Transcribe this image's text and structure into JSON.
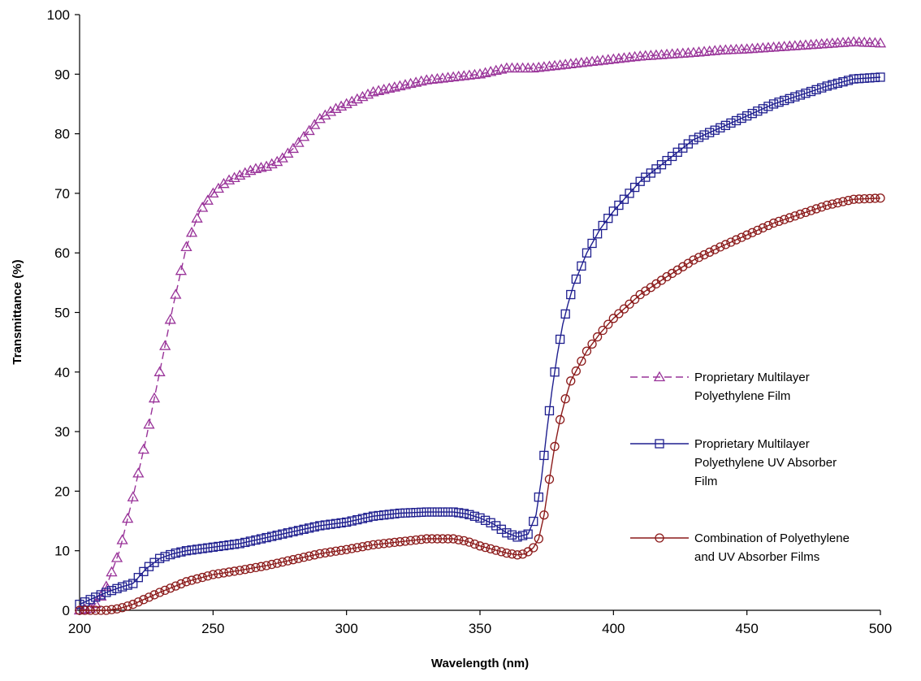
{
  "chart_data": {
    "type": "line",
    "title": "",
    "xlabel": "Wavelength (nm)",
    "ylabel": "Transmittance (%)",
    "xlim": [
      200,
      500
    ],
    "ylim": [
      0,
      100
    ],
    "x_ticks": [
      "200",
      "250",
      "300",
      "350",
      "400",
      "450",
      "500"
    ],
    "y_ticks": [
      "0",
      "10",
      "20",
      "30",
      "40",
      "50",
      "60",
      "70",
      "80",
      "90",
      "100"
    ],
    "grid": false,
    "legend_position": "right",
    "series": [
      {
        "name": "Proprietary Multilayer Polyethylene Film",
        "legend_lines": [
          "Proprietary Multilayer",
          "Polyethylene Film"
        ],
        "color": "#993399",
        "marker": "triangle",
        "line_style": "dashed",
        "points": [
          [
            200,
            0
          ],
          [
            204,
            0.3
          ],
          [
            207,
            1.5
          ],
          [
            210,
            4
          ],
          [
            215,
            10
          ],
          [
            220,
            19
          ],
          [
            225,
            29
          ],
          [
            230,
            40
          ],
          [
            235,
            51
          ],
          [
            240,
            61
          ],
          [
            245,
            67
          ],
          [
            250,
            70
          ],
          [
            255,
            72
          ],
          [
            260,
            73
          ],
          [
            265,
            74
          ],
          [
            270,
            74.5
          ],
          [
            275,
            75.5
          ],
          [
            280,
            77.5
          ],
          [
            285,
            80
          ],
          [
            290,
            82.5
          ],
          [
            295,
            84
          ],
          [
            300,
            85
          ],
          [
            305,
            86
          ],
          [
            310,
            87
          ],
          [
            320,
            88
          ],
          [
            330,
            89
          ],
          [
            340,
            89.5
          ],
          [
            350,
            90
          ],
          [
            360,
            91
          ],
          [
            370,
            91
          ],
          [
            380,
            91.5
          ],
          [
            390,
            92
          ],
          [
            400,
            92.5
          ],
          [
            410,
            93
          ],
          [
            420,
            93.3
          ],
          [
            430,
            93.6
          ],
          [
            440,
            94
          ],
          [
            450,
            94.2
          ],
          [
            460,
            94.5
          ],
          [
            470,
            94.8
          ],
          [
            480,
            95.1
          ],
          [
            490,
            95.4
          ],
          [
            500,
            95.2
          ]
        ]
      },
      {
        "name": "Proprietary Multilayer Polyethylene UV Absorber Film",
        "legend_lines": [
          "Proprietary Multilayer",
          "Polyethylene UV Absorber",
          "Film"
        ],
        "color": "#1f1f8f",
        "marker": "square",
        "line_style": "solid",
        "points": [
          [
            200,
            1
          ],
          [
            205,
            2
          ],
          [
            210,
            3
          ],
          [
            215,
            3.8
          ],
          [
            220,
            4.5
          ],
          [
            225,
            7
          ],
          [
            230,
            8.7
          ],
          [
            235,
            9.5
          ],
          [
            240,
            10
          ],
          [
            250,
            10.6
          ],
          [
            260,
            11.2
          ],
          [
            270,
            12.2
          ],
          [
            280,
            13.2
          ],
          [
            290,
            14.2
          ],
          [
            300,
            14.8
          ],
          [
            310,
            15.8
          ],
          [
            320,
            16.3
          ],
          [
            330,
            16.5
          ],
          [
            340,
            16.5
          ],
          [
            345,
            16.2
          ],
          [
            350,
            15.5
          ],
          [
            355,
            14.5
          ],
          [
            360,
            13
          ],
          [
            364,
            12.3
          ],
          [
            368,
            12.8
          ],
          [
            371,
            16
          ],
          [
            373,
            22
          ],
          [
            375,
            30
          ],
          [
            377,
            37
          ],
          [
            379,
            43
          ],
          [
            381,
            48
          ],
          [
            383,
            51.5
          ],
          [
            385,
            54.5
          ],
          [
            390,
            60
          ],
          [
            395,
            64
          ],
          [
            400,
            67
          ],
          [
            410,
            72
          ],
          [
            420,
            75.5
          ],
          [
            430,
            79
          ],
          [
            440,
            81
          ],
          [
            450,
            83
          ],
          [
            460,
            85
          ],
          [
            470,
            86.5
          ],
          [
            480,
            88
          ],
          [
            490,
            89.2
          ],
          [
            500,
            89.5
          ]
        ]
      },
      {
        "name": "Combination of Polyethylene and UV Absorber Films",
        "legend_lines": [
          "Combination of Polyethylene",
          "and UV Absorber Films"
        ],
        "color": "#8b1a1a",
        "marker": "circle",
        "line_style": "solid",
        "points": [
          [
            200,
            0
          ],
          [
            210,
            0
          ],
          [
            215,
            0.3
          ],
          [
            220,
            1
          ],
          [
            225,
            2
          ],
          [
            230,
            3
          ],
          [
            240,
            4.8
          ],
          [
            250,
            6
          ],
          [
            260,
            6.7
          ],
          [
            270,
            7.5
          ],
          [
            280,
            8.5
          ],
          [
            290,
            9.5
          ],
          [
            300,
            10.2
          ],
          [
            310,
            11
          ],
          [
            320,
            11.5
          ],
          [
            330,
            12
          ],
          [
            340,
            12
          ],
          [
            345,
            11.6
          ],
          [
            350,
            10.8
          ],
          [
            355,
            10.2
          ],
          [
            360,
            9.6
          ],
          [
            364,
            9.3
          ],
          [
            367,
            9.5
          ],
          [
            370,
            10.5
          ],
          [
            372,
            12
          ],
          [
            374,
            16
          ],
          [
            376,
            22
          ],
          [
            378,
            27.5
          ],
          [
            380,
            32
          ],
          [
            382,
            35.5
          ],
          [
            384,
            38.5
          ],
          [
            387,
            41
          ],
          [
            390,
            43.5
          ],
          [
            395,
            46.5
          ],
          [
            400,
            49
          ],
          [
            410,
            53
          ],
          [
            420,
            56
          ],
          [
            430,
            58.8
          ],
          [
            440,
            61
          ],
          [
            450,
            63
          ],
          [
            460,
            65
          ],
          [
            470,
            66.5
          ],
          [
            480,
            68
          ],
          [
            490,
            69
          ],
          [
            500,
            69.2
          ]
        ]
      }
    ]
  }
}
